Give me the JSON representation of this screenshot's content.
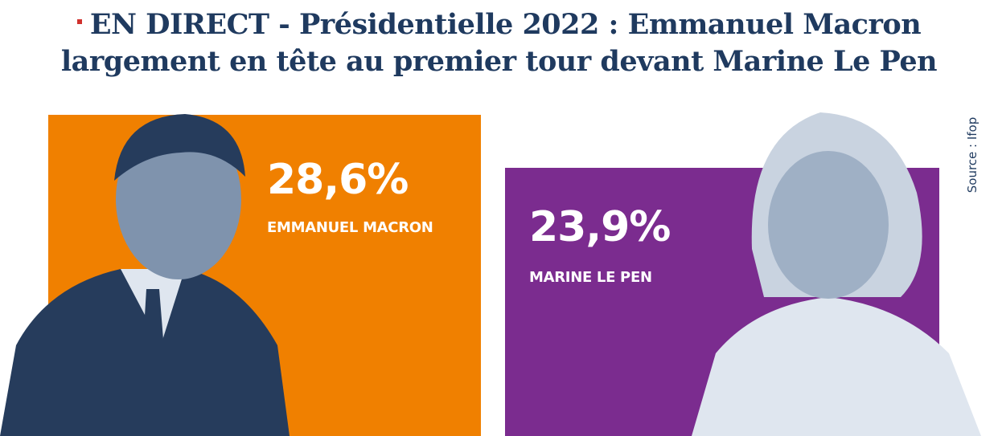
{
  "headline": {
    "line1": "EN DIRECT - Présidentielle 2022 : Emmanuel Macron",
    "line2": "largement en tête au premier tour devant Marine Le Pen"
  },
  "source": "Source : Ifop",
  "colors": {
    "headline": "#1f3a5f",
    "bullet": "#d0312d",
    "macron": "#f08000",
    "lepen": "#7b2c8f",
    "portrait_dark": "#263c5c",
    "portrait_light": "#dfe6ef"
  },
  "chart_data": {
    "type": "bar",
    "title": "",
    "categories": [
      "EMMANUEL MACRON",
      "MARINE LE PEN"
    ],
    "values": [
      28.6,
      23.9
    ],
    "value_labels": [
      "28,6%",
      "23,9%"
    ],
    "ylim": [
      0,
      32
    ],
    "unit": "%"
  }
}
